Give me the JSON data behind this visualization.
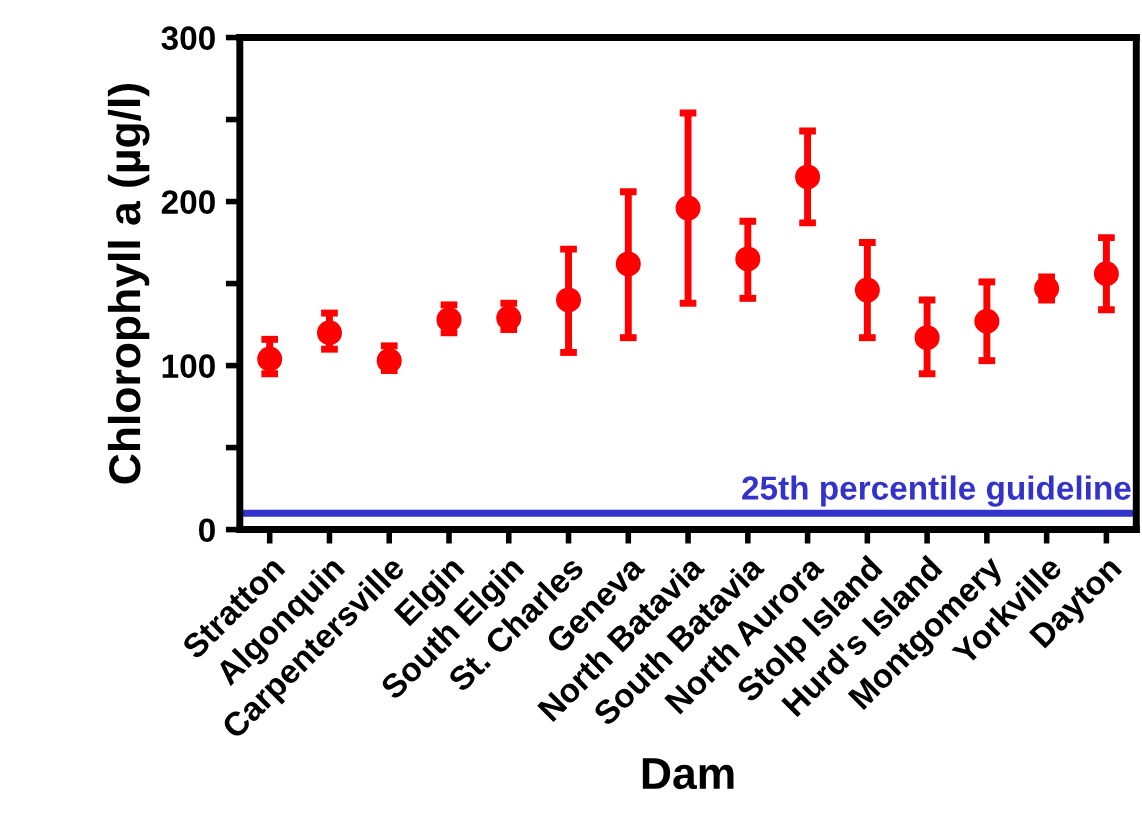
{
  "chart_data": {
    "type": "scatter",
    "xlabel": "Dam",
    "ylabel": "Chlorophyll a (µg/l)",
    "categories": [
      "Stratton",
      "Algonquin",
      "Carpentersville",
      "Elgin",
      "South Elgin",
      "St. Charles",
      "Geneva",
      "North Batavia",
      "South Batavia",
      "North Aurora",
      "Stolp Island",
      "Hurd's Island",
      "Montgomery",
      "Yorkville",
      "Dayton"
    ],
    "series": [
      {
        "color": "#ff0000",
        "values": [
          104,
          120,
          103,
          128,
          129,
          140,
          162,
          196,
          165,
          215,
          146,
          117,
          127,
          147,
          156
        ],
        "errors": [
          [
            95,
            116
          ],
          [
            110,
            132
          ],
          [
            97,
            112
          ],
          [
            120,
            137
          ],
          [
            122,
            138
          ],
          [
            108,
            171
          ],
          [
            117,
            206
          ],
          [
            138,
            254
          ],
          [
            141,
            188
          ],
          [
            187,
            243
          ],
          [
            117,
            175
          ],
          [
            95,
            140
          ],
          [
            103,
            151
          ],
          [
            140,
            154
          ],
          [
            134,
            178
          ]
        ]
      }
    ],
    "marker": "circle",
    "ylim": [
      0,
      300
    ],
    "yticks": [
      0,
      {
        "value": 50,
        "label": null
      },
      100,
      {
        "value": 150,
        "label": null
      },
      200,
      {
        "value": 250,
        "label": null
      },
      300
    ],
    "ref_lines": [
      {
        "axis": "y",
        "value": 10,
        "label": "25th percentile guideline",
        "color": "#3333cc"
      }
    ],
    "grid": false,
    "legend": false
  }
}
